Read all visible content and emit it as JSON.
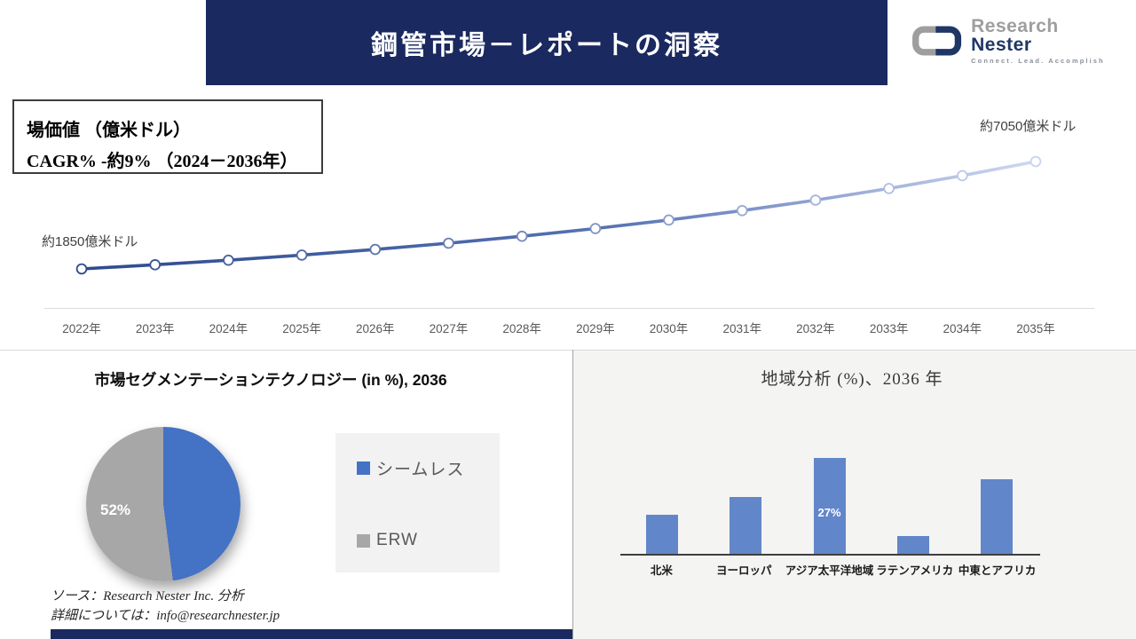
{
  "header": {
    "title": "鋼管市場－レポートの洞察"
  },
  "logo": {
    "brand_gray": "Research",
    "brand_navy": "Nester",
    "tagline": "Connect. Lead. Accomplish"
  },
  "info_box": {
    "line1": "場価値 （億米ドル）",
    "line2": "CAGR% -約9% （2024－2036年）"
  },
  "colors": {
    "navy": "#1a295f",
    "line_start": "#2f4a8e",
    "line_end": "#cfd8f0",
    "pie_blue": "#4472c4",
    "pie_gray": "#a7a7a7",
    "bar_blue": "#6286ca",
    "panel_gray": "#f4f4f2",
    "legend_bg": "#f2f2f2"
  },
  "chart_data": [
    {
      "id": "market-line",
      "type": "line",
      "title": "",
      "categories": [
        "2022年",
        "2023年",
        "2024年",
        "2025年",
        "2026年",
        "2027年",
        "2028年",
        "2029年",
        "2030年",
        "2031年",
        "2032年",
        "2033年",
        "2034年",
        "2035年"
      ],
      "values": [
        1850,
        2051,
        2273,
        2520,
        2793,
        3096,
        3432,
        3804,
        4217,
        4674,
        5181,
        5743,
        6366,
        7050
      ],
      "start_label": "約1850億米ドル",
      "end_label": "約7050億米ドル",
      "ylim": [
        1850,
        7050
      ],
      "grid": false,
      "legend": "none",
      "marker": "open-circle"
    },
    {
      "id": "tech-pie",
      "type": "pie",
      "title": "市場セグメンテーションテクノロジー  (in %), 2036",
      "slices": [
        {
          "label": "シームレス",
          "value": 48,
          "color": "#4472c4"
        },
        {
          "label": "ERW",
          "value": 52,
          "color": "#a7a7a7"
        }
      ],
      "visible_data_label": "52%",
      "legend_position": "right"
    },
    {
      "id": "region-bar",
      "type": "bar",
      "title": "地域分析 (%)、2036 年",
      "categories": [
        "北米",
        "ヨーロッパ",
        "アジア太平洋地域",
        "ラテンアメリカ",
        "中東とアフリカ"
      ],
      "values": [
        11,
        16,
        27,
        5,
        21
      ],
      "visible_data_label": {
        "index": 2,
        "text": "27%"
      },
      "ylim": [
        0,
        31
      ],
      "grid": false
    }
  ],
  "source": {
    "line1": "ソース：Research Nester Inc. 分析",
    "line2": "詳細については：info@researchnester.jp"
  }
}
